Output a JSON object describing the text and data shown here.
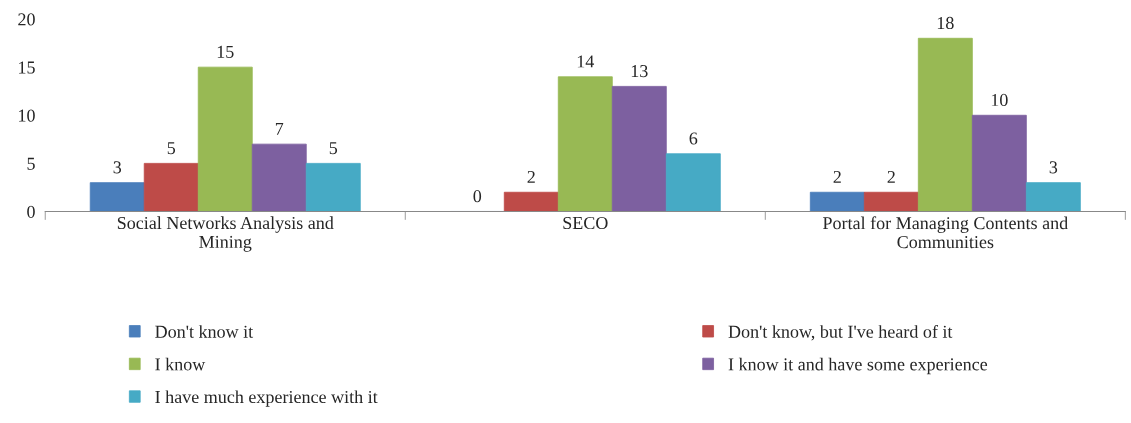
{
  "chart_data": {
    "type": "bar",
    "categories": [
      "Social Networks Analysis and\nMining",
      "SECO",
      "Portal for Managing Contents and\nCommunities"
    ],
    "series": [
      {
        "name": "Don't know it",
        "color": "#4a7ebb",
        "values": [
          3,
          0,
          2
        ]
      },
      {
        "name": "Don't know, but I've heard of it",
        "color": "#be4b48",
        "values": [
          5,
          2,
          2
        ]
      },
      {
        "name": "I know",
        "color": "#98b954",
        "values": [
          15,
          14,
          18
        ]
      },
      {
        "name": "I know it and have some experience",
        "color": "#7d60a0",
        "values": [
          7,
          13,
          10
        ]
      },
      {
        "name": "I have much experience with it",
        "color": "#46aac5",
        "values": [
          5,
          6,
          3
        ]
      }
    ],
    "ylim": [
      0,
      20
    ],
    "yticks": [
      0,
      5,
      10,
      15,
      20
    ],
    "grid": false,
    "legend": "bottom",
    "data_labels": true
  }
}
